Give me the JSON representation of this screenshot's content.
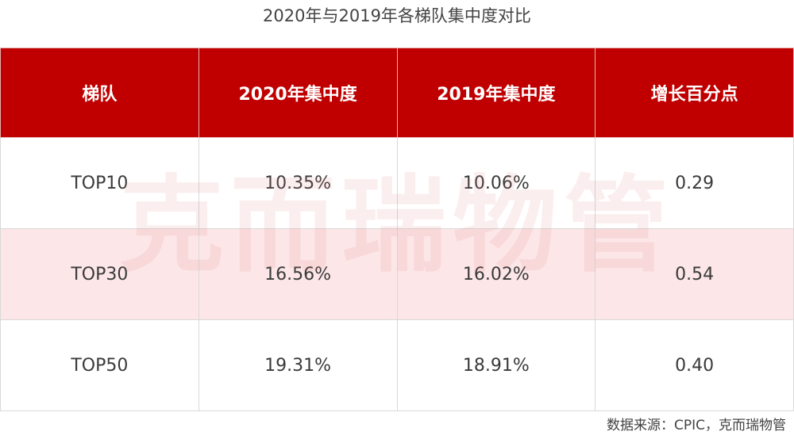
{
  "title": "2020年与2019年各梯队集中度对比",
  "table": {
    "header": [
      "梯队",
      "2020年集中度",
      "2019年集中度",
      "增长百分点"
    ],
    "rows": [
      [
        "TOP10",
        "10.35%",
        "10.06%",
        "0.29"
      ],
      [
        "TOP30",
        "16.56%",
        "16.02%",
        "0.54"
      ],
      [
        "TOP50",
        "19.31%",
        "18.91%",
        "0.40"
      ]
    ]
  },
  "watermark": "克而瑞物管",
  "source": "数据来源：CPIC，克而瑞物管"
}
